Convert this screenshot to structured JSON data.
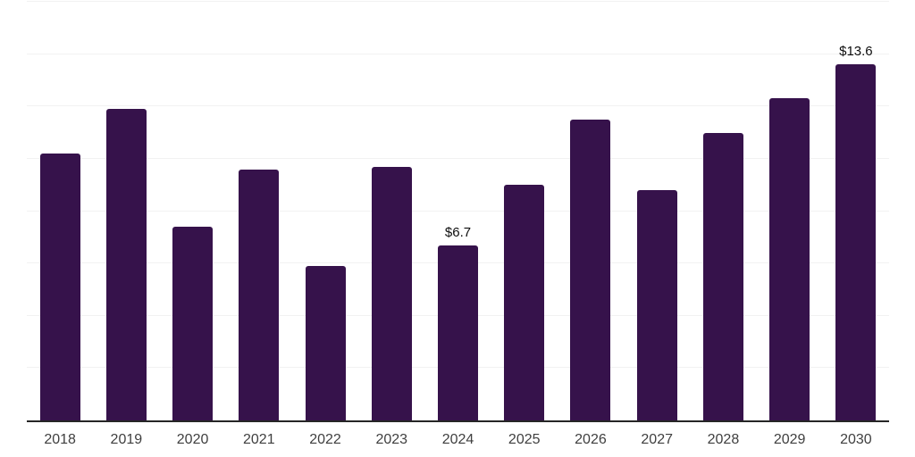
{
  "chart_data": {
    "type": "bar",
    "title": "",
    "xlabel": "",
    "ylabel": "",
    "categories": [
      "2018",
      "2019",
      "2020",
      "2021",
      "2022",
      "2023",
      "2024",
      "2025",
      "2026",
      "2027",
      "2028",
      "2029",
      "2030"
    ],
    "values": [
      10.2,
      11.9,
      7.4,
      9.6,
      5.9,
      9.7,
      6.7,
      9.0,
      11.5,
      8.8,
      11.0,
      12.3,
      13.6
    ],
    "data_labels": [
      "",
      "",
      "",
      "",
      "",
      "",
      "$6.7",
      "",
      "",
      "",
      "",
      "",
      "$13.6"
    ],
    "ylim": [
      0,
      16
    ],
    "gridline_values": [
      2,
      4,
      6,
      8,
      10,
      12,
      14,
      16
    ],
    "grid": true,
    "legend_position": "none",
    "colors": {
      "bar": "#36124b",
      "gridline": "#f2f2f2",
      "axis_line": "#262626",
      "tick_label": "#3f3f3f",
      "data_label": "#0d0d0d",
      "background": "#ffffff"
    }
  }
}
